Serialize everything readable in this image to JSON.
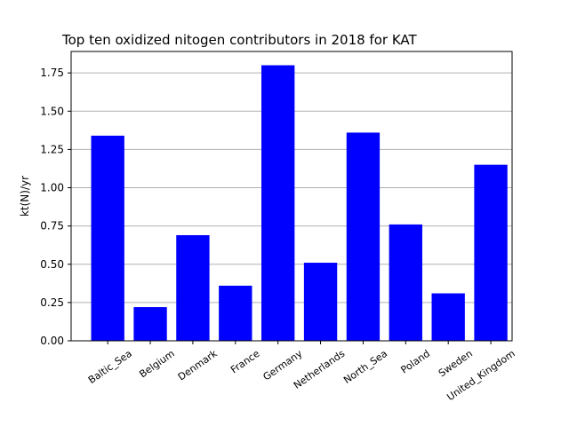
{
  "chart_data": {
    "type": "bar",
    "title": "Top ten oxidized nitogen contributors in 2018 for  KAT",
    "xlabel": "",
    "ylabel": "kt(N)/yr",
    "categories": [
      "Baltic_Sea",
      "Belgium",
      "Denmark",
      "France",
      "Germany",
      "Netherlands",
      "North_Sea",
      "Poland",
      "Sweden",
      "United_Kingdom"
    ],
    "values": [
      1.34,
      0.22,
      0.69,
      0.36,
      1.8,
      0.51,
      1.36,
      0.76,
      0.31,
      1.15
    ],
    "ylim": [
      0,
      1.89
    ],
    "yticks": [
      "0.00",
      "0.25",
      "0.50",
      "0.75",
      "1.00",
      "1.25",
      "1.50",
      "1.75"
    ],
    "grid": "horizontal",
    "bar_color": "#0000ff",
    "grid_color": "#b0b0b0"
  }
}
